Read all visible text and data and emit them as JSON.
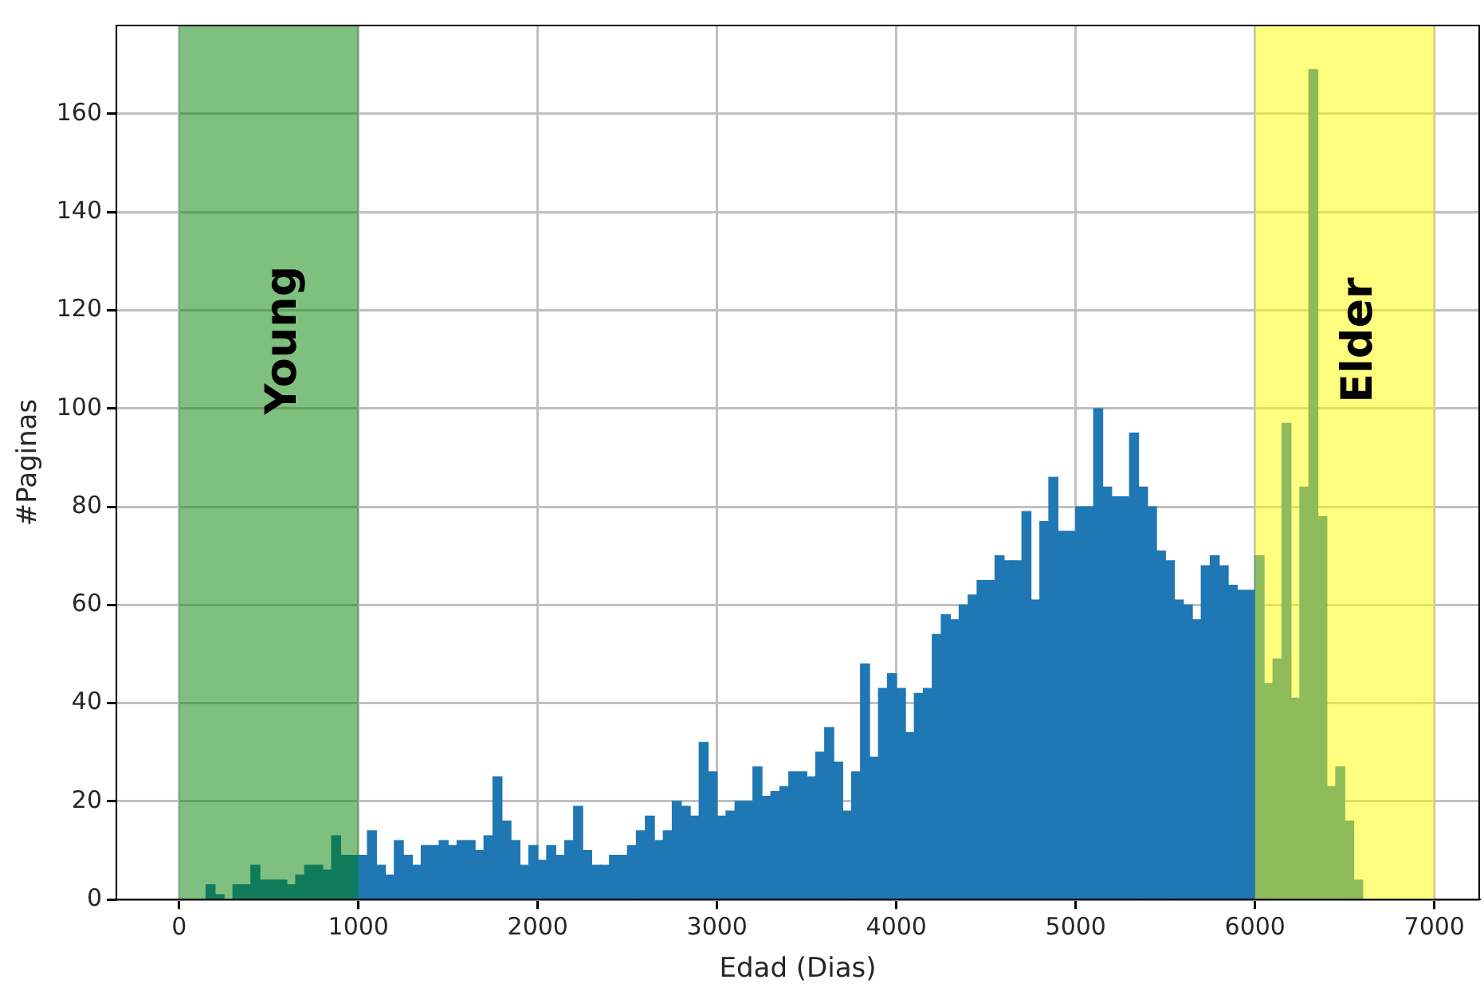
{
  "chart_data": {
    "type": "histogram",
    "xlabel": "Edad (Dias)",
    "ylabel": "#Paginas",
    "bins": [
      100,
      150,
      200,
      250,
      300,
      350,
      400,
      450,
      500,
      550,
      600,
      650,
      700,
      750,
      800,
      850,
      900,
      950,
      1000,
      1050,
      1100,
      1150,
      1200,
      1250,
      1300,
      1350,
      1400,
      1450,
      1500,
      1550,
      1600,
      1650,
      1700,
      1750,
      1800,
      1850,
      1900,
      1950,
      2000,
      2050,
      2100,
      2150,
      2200,
      2250,
      2300,
      2350,
      2400,
      2450,
      2500,
      2550,
      2600,
      2650,
      2700,
      2750,
      2800,
      2850,
      2900,
      2950,
      3000,
      3050,
      3100,
      3150,
      3200,
      3250,
      3300,
      3350,
      3400,
      3450,
      3500,
      3550,
      3600,
      3650,
      3700,
      3750,
      3800,
      3850,
      3900,
      3950,
      4000,
      4050,
      4100,
      4150,
      4200,
      4250,
      4300,
      4350,
      4400,
      4450,
      4500,
      4550,
      4600,
      4650,
      4700,
      4750,
      4800,
      4850,
      4900,
      4950,
      5000,
      5050,
      5100,
      5150,
      5200,
      5250,
      5300,
      5350,
      5400,
      5450,
      5500,
      5550,
      5600,
      5650,
      5700,
      5750,
      5800,
      5850,
      5900,
      5950,
      6000,
      6050,
      6100,
      6150,
      6200,
      6250,
      6300,
      6350,
      6400,
      6450,
      6500,
      6550,
      6600
    ],
    "values": [
      0,
      3,
      1,
      0,
      3,
      3,
      7,
      4,
      4,
      4,
      3,
      5,
      7,
      7,
      6,
      13,
      9,
      9,
      9,
      14,
      7,
      5,
      12,
      9,
      7,
      11,
      11,
      12,
      11,
      12,
      12,
      10,
      13,
      25,
      16,
      12,
      7,
      11,
      8,
      11,
      9,
      12,
      19,
      10,
      7,
      7,
      9,
      9,
      11,
      14,
      17,
      12,
      14,
      20,
      19,
      17,
      32,
      26,
      17,
      18,
      20,
      20,
      27,
      21,
      22,
      23,
      26,
      26,
      25,
      30,
      35,
      28,
      18,
      26,
      48,
      29,
      43,
      46,
      43,
      34,
      42,
      43,
      54,
      58,
      57,
      60,
      62,
      65,
      65,
      70,
      69,
      69,
      79,
      61,
      77,
      86,
      75,
      75,
      80,
      80,
      100,
      84,
      82,
      82,
      95,
      84,
      80,
      71,
      69,
      61,
      60,
      57,
      68,
      70,
      68,
      64,
      63,
      63,
      70,
      44,
      49,
      97,
      41,
      84,
      169,
      78,
      23,
      27,
      16,
      4
    ],
    "color": "#1f77b4",
    "xlim": [
      -350,
      7250
    ],
    "xticks": [
      0,
      1000,
      2000,
      3000,
      4000,
      5000,
      6000,
      7000
    ],
    "ylim": [
      0,
      178
    ],
    "yticks": [
      0,
      20,
      40,
      60,
      80,
      100,
      120,
      140,
      160
    ],
    "grid": true,
    "bands": [
      {
        "axis": "x",
        "from": 0,
        "to": 1000,
        "label": "Young",
        "color": "#008000"
      },
      {
        "axis": "x",
        "from": 6000,
        "to": 7000,
        "label": "Elder",
        "color": "#ffff00"
      }
    ]
  }
}
